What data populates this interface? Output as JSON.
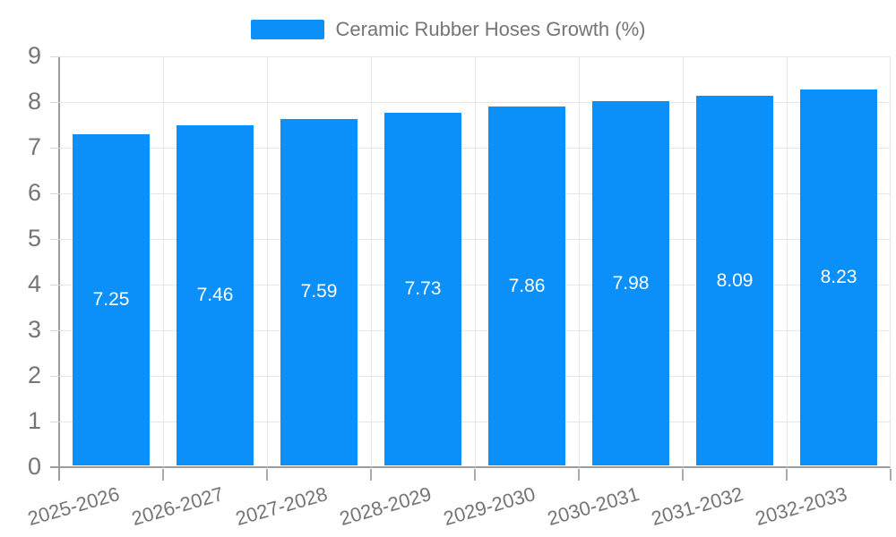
{
  "chart_data": {
    "type": "bar",
    "title": "Ceramic Rubber Hoses Growth (%)",
    "categories": [
      "2025-2026",
      "2026-2027",
      "2027-2028",
      "2028-2029",
      "2029-2030",
      "2030-2031",
      "2031-2032",
      "2032-2033"
    ],
    "values": [
      7.25,
      7.46,
      7.59,
      7.73,
      7.86,
      7.98,
      8.09,
      8.23
    ],
    "value_labels": [
      "7.25",
      "7.46",
      "7.59",
      "7.73",
      "7.86",
      "7.98",
      "8.09",
      "8.23"
    ],
    "series_name": "Ceramic Rubber Hoses Growth (%)",
    "xlabel": "",
    "ylabel": "",
    "ylim": [
      0,
      9
    ],
    "ytick_step": 1,
    "yticks": [
      "0",
      "1",
      "2",
      "3",
      "4",
      "5",
      "6",
      "7",
      "8",
      "9"
    ],
    "grid": true,
    "legend_position": "top-center",
    "colors": {
      "bar": "#0a90f8",
      "axis_text": "#757575",
      "bar_value_text": "#ffffff",
      "gridline": "#e6e6e6",
      "axis_line": "#9c9c9c"
    }
  }
}
